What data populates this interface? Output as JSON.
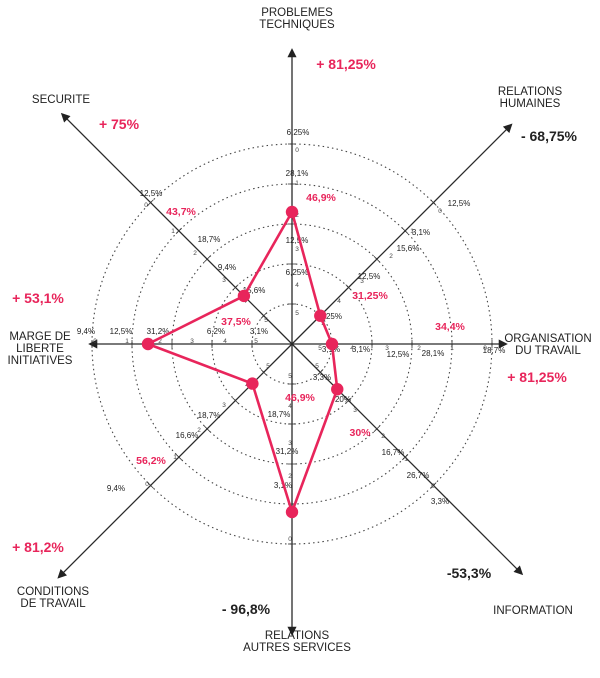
{
  "chart_data": {
    "type": "radar",
    "axes": [
      {
        "name": "problemes-techniques",
        "label_lines": [
          "PROBLEMES",
          "TECHNIQUES"
        ],
        "change": "+ 81,25%",
        "change_color": "red",
        "value": "46,9%",
        "ticks": [
          "6,25%",
          "28,1%",
          "12,5%",
          "6,25%",
          "",
          "",
          "",
          "",
          "",
          "",
          "",
          ""
        ],
        "ring_labels": [
          "0",
          "1",
          "2",
          "3",
          "4",
          "5"
        ]
      },
      {
        "name": "relations-humaines",
        "label_lines": [
          "RELATIONS",
          "HUMAINES"
        ],
        "change": "- 68,75%",
        "change_color": "black",
        "value": "31,25%",
        "ticks": [
          "12,5%",
          "3,1%",
          "15,6%",
          "12,5%",
          "25%",
          ""
        ],
        "ring_labels": [
          "0",
          "1",
          "2",
          "3",
          "4",
          "5"
        ]
      },
      {
        "name": "organisation-du-travail",
        "label_lines": [
          "ORGANISATION",
          "DU TRAVAIL"
        ],
        "change": "+ 81,25%",
        "change_color": "red",
        "value": "34,4%",
        "ticks": [
          "18,7%",
          "28,1%",
          "12,5%",
          "3,1%",
          "3,1%",
          ""
        ],
        "ring_labels": [
          "0",
          "1",
          "2",
          "3",
          "4",
          "5"
        ]
      },
      {
        "name": "information",
        "label_lines": [
          "INFORMATION"
        ],
        "change": "-53,3%",
        "change_color": "black",
        "value": "30%",
        "ticks": [
          "3,3%",
          "26,7%",
          "16,7%",
          "20%",
          "3,3%",
          ""
        ],
        "ring_labels": [
          "0",
          "1",
          "2",
          "3",
          "4",
          "5"
        ]
      },
      {
        "name": "relations-autres-services",
        "label_lines": [
          "RELATIONS",
          "AUTRES SERVICES"
        ],
        "change": "- 96,8%",
        "change_color": "black",
        "value": "46,9%",
        "ticks": [
          "3,1%",
          "31,2%",
          "18,7%",
          "",
          "",
          ""
        ],
        "ring_labels": [
          "0",
          "1",
          "2",
          "3",
          "4",
          "5"
        ]
      },
      {
        "name": "conditions-de-travail",
        "label_lines": [
          "CONDITIONS",
          "DE TRAVAIL"
        ],
        "change": "+ 81,2%",
        "change_color": "red",
        "value": "56,2%",
        "ticks": [
          "9,4%",
          "16,6%",
          "18,7%",
          "",
          "",
          ""
        ],
        "ring_labels": [
          "0",
          "1",
          "2",
          "3",
          "4",
          "5"
        ]
      },
      {
        "name": "marge-de-liberte-initiatives",
        "label_lines": [
          "MARGE DE",
          "LIBERTE",
          "INITIATIVES"
        ],
        "change": "+ 53,1%",
        "change_color": "red",
        "value": "37,5%",
        "ticks": [
          "9,4%",
          "12,5%",
          "31,2%",
          "6,2%",
          "3,1%",
          ""
        ],
        "ring_labels": [
          "0",
          "1",
          "2",
          "3",
          "4",
          "5"
        ]
      },
      {
        "name": "securite",
        "label_lines": [
          "SECURITE"
        ],
        "change": "+ 75%",
        "change_color": "red",
        "value": "43,7%",
        "ticks": [
          "12,5%",
          "18,7%",
          "9,4%",
          "15,6%",
          "",
          ""
        ],
        "ring_labels": [
          "0",
          "1",
          "2",
          "3",
          "4",
          "5"
        ]
      }
    ],
    "series_values": [
      {
        "axis": "problemes-techniques",
        "score": 3.3
      },
      {
        "axis": "relations-humaines",
        "score": 1.0
      },
      {
        "axis": "organisation-du-travail",
        "score": 1.0
      },
      {
        "axis": "information",
        "score": 1.6
      },
      {
        "axis": "relations-autres-services",
        "score": 4.2
      },
      {
        "axis": "conditions-de-travail",
        "score": 1.4
      },
      {
        "axis": "marge-de-liberte-initiatives",
        "score": 3.6
      },
      {
        "axis": "securite",
        "score": 1.7
      }
    ],
    "scale": {
      "min": 0,
      "max": 5
    },
    "grid": "dotted-circles"
  }
}
